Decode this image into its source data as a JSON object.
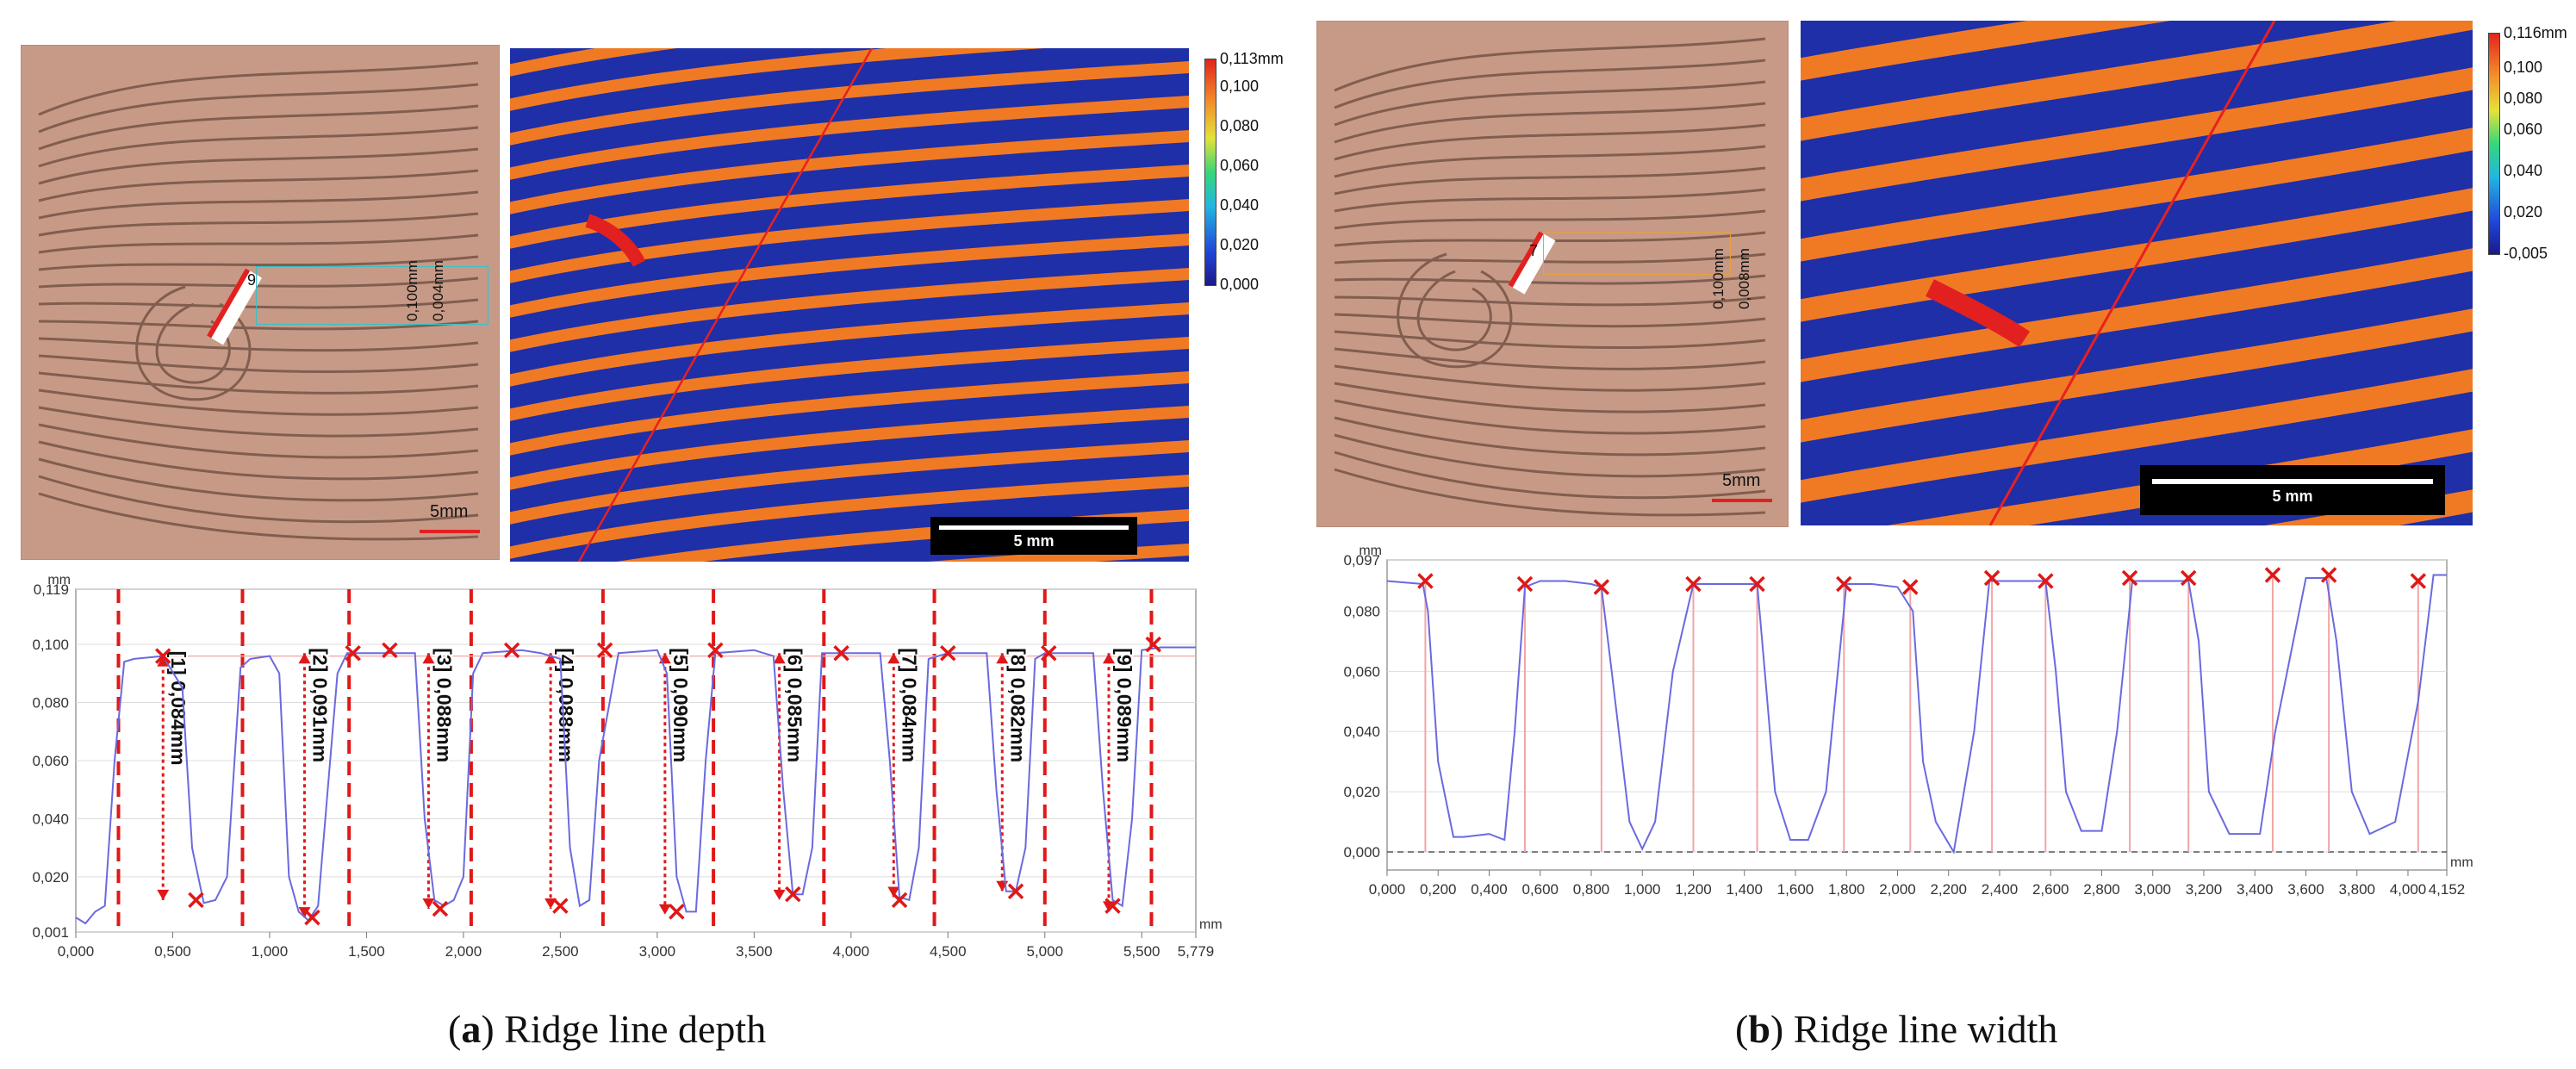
{
  "panel_a": {
    "caption_letter": "a",
    "caption_text": " Ridge line depth",
    "photo_scale_label": "5mm",
    "photo_profile_label": "9",
    "photo_dim_1": "0,100mm",
    "photo_dim_2": "0,004mm",
    "map_scale_label": "5 mm",
    "colorbar": {
      "top_label": "0,113mm",
      "ticks": [
        "0,100",
        "0,080",
        "0,060",
        "0,040",
        "0,020",
        "0,000"
      ]
    }
  },
  "panel_b": {
    "caption_letter": "b",
    "caption_text": " Ridge line width",
    "photo_scale_label": "5mm",
    "photo_profile_label": "7",
    "photo_dim_1": "0,100mm",
    "photo_dim_2": "0,008mm",
    "map_scale_label": "5 mm",
    "colorbar": {
      "top_label": "0,116mm",
      "ticks": [
        "0,100",
        "0,080",
        "0,060",
        "0,040",
        "0,020",
        "-0,005"
      ]
    }
  },
  "chart_data": [
    {
      "type": "line",
      "id": "depth",
      "unit_y": "mm",
      "unit_x": "mm",
      "ylim": [
        0.001,
        0.119
      ],
      "xlim": [
        0,
        5.779
      ],
      "y_ticks": [
        "0,001",
        "0,020",
        "0,040",
        "0,060",
        "0,080",
        "0,100",
        "0,119"
      ],
      "y_tick_values": [
        0.001,
        0.02,
        0.04,
        0.06,
        0.08,
        0.1,
        0.119
      ],
      "x_ticks": [
        "0,000",
        "0,500",
        "1,000",
        "1,500",
        "2,000",
        "2,500",
        "3,000",
        "3,500",
        "4,000",
        "4,500",
        "5,000",
        "5,500",
        "5,779"
      ],
      "x_tick_values": [
        0,
        0.5,
        1,
        1.5,
        2,
        2.5,
        3,
        3.5,
        4,
        4.5,
        5,
        5.5,
        5.779
      ],
      "profile": {
        "x": [
          0,
          0.05,
          0.1,
          0.15,
          0.2,
          0.25,
          0.3,
          0.45,
          0.55,
          0.6,
          0.66,
          0.72,
          0.78,
          0.85,
          0.9,
          1.0,
          1.05,
          1.1,
          1.15,
          1.2,
          1.25,
          1.3,
          1.35,
          1.4,
          1.45,
          1.6,
          1.75,
          1.8,
          1.85,
          1.9,
          1.95,
          2.0,
          2.05,
          2.1,
          2.3,
          2.4,
          2.5,
          2.55,
          2.6,
          2.65,
          2.7,
          2.8,
          3.0,
          3.05,
          3.1,
          3.15,
          3.2,
          3.25,
          3.3,
          3.5,
          3.6,
          3.65,
          3.7,
          3.75,
          3.8,
          3.85,
          4.05,
          4.15,
          4.2,
          4.25,
          4.3,
          4.35,
          4.4,
          4.5,
          4.7,
          4.75,
          4.8,
          4.85,
          4.9,
          4.95,
          5.0,
          5.1,
          5.25,
          5.3,
          5.35,
          5.4,
          5.45,
          5.5,
          5.6,
          5.779
        ],
        "y": [
          0.006,
          0.004,
          0.008,
          0.01,
          0.06,
          0.094,
          0.095,
          0.096,
          0.085,
          0.03,
          0.011,
          0.012,
          0.02,
          0.092,
          0.095,
          0.096,
          0.09,
          0.02,
          0.008,
          0.005,
          0.01,
          0.05,
          0.09,
          0.097,
          0.097,
          0.097,
          0.097,
          0.04,
          0.012,
          0.01,
          0.012,
          0.02,
          0.09,
          0.097,
          0.098,
          0.097,
          0.095,
          0.03,
          0.01,
          0.012,
          0.06,
          0.097,
          0.098,
          0.09,
          0.02,
          0.008,
          0.008,
          0.06,
          0.097,
          0.098,
          0.096,
          0.05,
          0.014,
          0.014,
          0.03,
          0.097,
          0.097,
          0.097,
          0.06,
          0.013,
          0.012,
          0.03,
          0.095,
          0.097,
          0.097,
          0.05,
          0.015,
          0.015,
          0.03,
          0.095,
          0.097,
          0.097,
          0.097,
          0.05,
          0.012,
          0.01,
          0.04,
          0.098,
          0.099,
          0.099
        ]
      },
      "section_bounds_x": [
        0.22,
        0.86,
        1.41,
        2.04,
        2.72,
        3.29,
        3.86,
        4.43,
        5.0,
        5.55
      ],
      "measurements": [
        {
          "label": "[1] 0,084mm",
          "x": 0.45,
          "top": 0.096,
          "bottom": 0.012
        },
        {
          "label": "[2] 0,091mm",
          "x": 1.18,
          "top": 0.097,
          "bottom": 0.006
        },
        {
          "label": "[3] 0,088mm",
          "x": 1.82,
          "top": 0.097,
          "bottom": 0.009
        },
        {
          "label": "[4] 0,088mm",
          "x": 2.45,
          "top": 0.097,
          "bottom": 0.009
        },
        {
          "label": "[5] 0,090mm",
          "x": 3.04,
          "top": 0.097,
          "bottom": 0.007
        },
        {
          "label": "[6] 0,085mm",
          "x": 3.63,
          "top": 0.097,
          "bottom": 0.012
        },
        {
          "label": "[7] 0,084mm",
          "x": 4.22,
          "top": 0.097,
          "bottom": 0.013
        },
        {
          "label": "[8] 0,082mm",
          "x": 4.78,
          "top": 0.097,
          "bottom": 0.015
        },
        {
          "label": "[9] 0,089mm",
          "x": 5.33,
          "top": 0.097,
          "bottom": 0.008
        }
      ],
      "markers": [
        {
          "x": 0.45,
          "y": 0.096
        },
        {
          "x": 0.62,
          "y": 0.012
        },
        {
          "x": 1.22,
          "y": 0.006
        },
        {
          "x": 1.43,
          "y": 0.097
        },
        {
          "x": 1.62,
          "y": 0.098
        },
        {
          "x": 1.88,
          "y": 0.009
        },
        {
          "x": 2.25,
          "y": 0.098
        },
        {
          "x": 2.5,
          "y": 0.01
        },
        {
          "x": 2.73,
          "y": 0.098
        },
        {
          "x": 3.1,
          "y": 0.008
        },
        {
          "x": 3.3,
          "y": 0.098
        },
        {
          "x": 3.7,
          "y": 0.014
        },
        {
          "x": 3.95,
          "y": 0.097
        },
        {
          "x": 4.25,
          "y": 0.012
        },
        {
          "x": 4.5,
          "y": 0.097
        },
        {
          "x": 4.85,
          "y": 0.015
        },
        {
          "x": 5.02,
          "y": 0.097
        },
        {
          "x": 5.35,
          "y": 0.01
        },
        {
          "x": 5.56,
          "y": 0.1
        }
      ]
    },
    {
      "type": "line",
      "id": "width",
      "unit_y": "mm",
      "unit_x": "mm",
      "ylim": [
        -0.006,
        0.097
      ],
      "xlim": [
        0,
        4.152
      ],
      "y_ticks": [
        "0,000",
        "0,020",
        "0,040",
        "0,060",
        "0,080",
        "0,097"
      ],
      "y_tick_values": [
        0,
        0.02,
        0.04,
        0.06,
        0.08,
        0.097
      ],
      "x_ticks": [
        "0,000",
        "0,200",
        "0,400",
        "0,600",
        "0,800",
        "1,000",
        "1,200",
        "1,400",
        "1,600",
        "1,800",
        "2,000",
        "2,200",
        "2,400",
        "2,600",
        "2,800",
        "3,000",
        "3,200",
        "3,400",
        "3,600",
        "3,800",
        "4,000",
        "4,152"
      ],
      "x_tick_values": [
        0,
        0.2,
        0.4,
        0.6,
        0.8,
        1.0,
        1.2,
        1.4,
        1.6,
        1.8,
        2.0,
        2.2,
        2.4,
        2.6,
        2.8,
        3.0,
        3.2,
        3.4,
        3.6,
        3.8,
        4.0,
        4.152
      ],
      "profile": {
        "x": [
          0,
          0.14,
          0.16,
          0.2,
          0.26,
          0.3,
          0.4,
          0.46,
          0.5,
          0.54,
          0.6,
          0.7,
          0.8,
          0.84,
          0.88,
          0.95,
          1.0,
          1.05,
          1.12,
          1.2,
          1.3,
          1.45,
          1.48,
          1.52,
          1.58,
          1.65,
          1.72,
          1.8,
          1.9,
          2.0,
          2.06,
          2.1,
          2.15,
          2.22,
          2.3,
          2.36,
          2.45,
          2.58,
          2.62,
          2.66,
          2.72,
          2.8,
          2.86,
          2.92,
          3.05,
          3.14,
          3.18,
          3.22,
          3.3,
          3.42,
          3.48,
          3.6,
          3.68,
          3.72,
          3.78,
          3.85,
          3.95,
          4.04,
          4.1,
          4.152
        ],
        "y": [
          0.09,
          0.089,
          0.08,
          0.03,
          0.005,
          0.005,
          0.006,
          0.004,
          0.04,
          0.088,
          0.09,
          0.09,
          0.089,
          0.088,
          0.06,
          0.01,
          0.001,
          0.01,
          0.06,
          0.089,
          0.089,
          0.089,
          0.06,
          0.02,
          0.004,
          0.004,
          0.02,
          0.089,
          0.089,
          0.088,
          0.08,
          0.03,
          0.01,
          0.0,
          0.04,
          0.09,
          0.09,
          0.09,
          0.06,
          0.02,
          0.007,
          0.007,
          0.04,
          0.09,
          0.09,
          0.09,
          0.07,
          0.02,
          0.006,
          0.006,
          0.04,
          0.091,
          0.091,
          0.07,
          0.02,
          0.006,
          0.01,
          0.05,
          0.092,
          0.092
        ]
      },
      "markers": [
        {
          "x": 0.15,
          "y": 0.09
        },
        {
          "x": 0.54,
          "y": 0.089
        },
        {
          "x": 0.84,
          "y": 0.088
        },
        {
          "x": 1.2,
          "y": 0.089
        },
        {
          "x": 1.45,
          "y": 0.089
        },
        {
          "x": 1.79,
          "y": 0.089
        },
        {
          "x": 2.05,
          "y": 0.088
        },
        {
          "x": 2.37,
          "y": 0.091
        },
        {
          "x": 2.58,
          "y": 0.09
        },
        {
          "x": 2.91,
          "y": 0.091
        },
        {
          "x": 3.14,
          "y": 0.091
        },
        {
          "x": 3.47,
          "y": 0.092
        },
        {
          "x": 3.69,
          "y": 0.092
        },
        {
          "x": 4.04,
          "y": 0.09
        }
      ]
    }
  ]
}
